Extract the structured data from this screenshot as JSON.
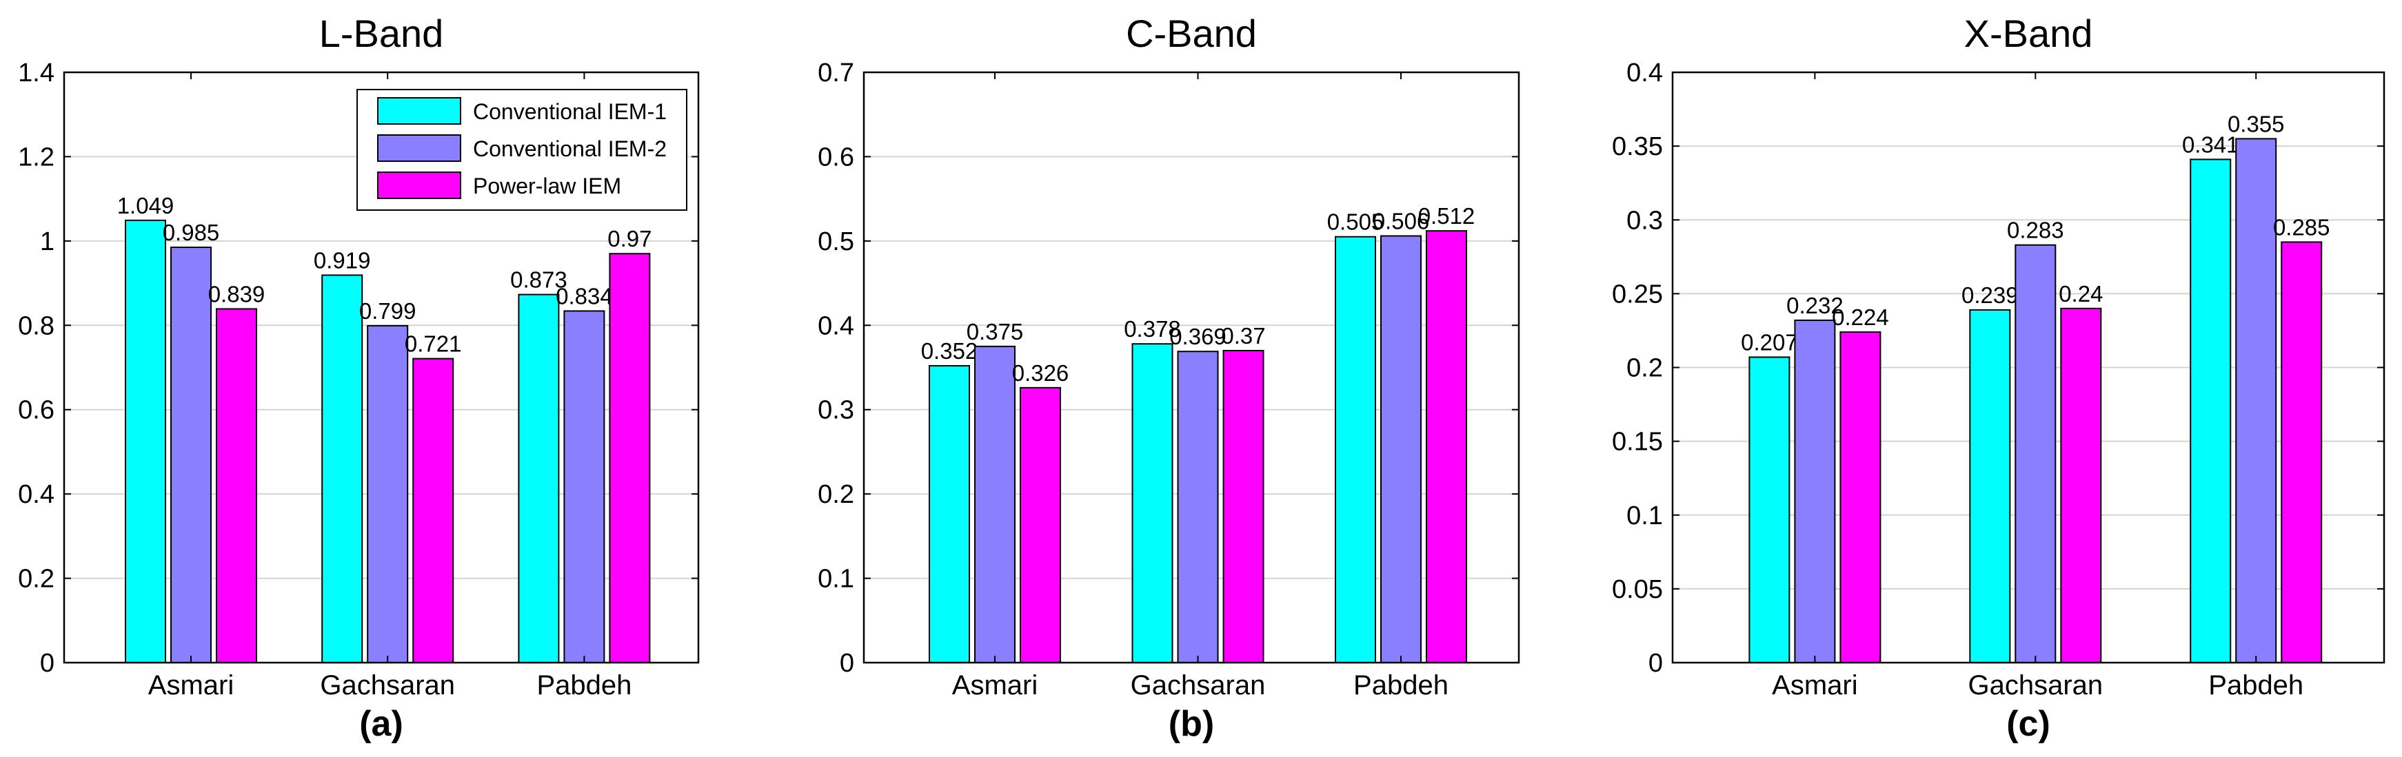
{
  "chart_data": [
    {
      "type": "bar",
      "title": "L-Band",
      "sublabel": "(a)",
      "categories": [
        "Asmari",
        "Gachsaran",
        "Pabdeh"
      ],
      "ylim": [
        0,
        1.4
      ],
      "yticks": [
        "0",
        "0.2",
        "0.4",
        "0.6",
        "0.8",
        "1",
        "1.2",
        "1.4"
      ],
      "grid": true,
      "legend": "top-right",
      "series": [
        {
          "name": "Conventional IEM-1",
          "color": "#00ffff",
          "values": [
            1.049,
            0.919,
            0.873
          ],
          "labels": [
            "1.049",
            "0.919",
            "0.873"
          ]
        },
        {
          "name": "Conventional IEM-2",
          "color": "#8a7fff",
          "values": [
            0.985,
            0.799,
            0.834
          ],
          "labels": [
            "0.985",
            "0.799",
            "0.834"
          ]
        },
        {
          "name": "Power-law IEM",
          "color": "#ff00ff",
          "values": [
            0.839,
            0.721,
            0.97
          ],
          "labels": [
            "0.839",
            "0.721",
            "0.97"
          ]
        }
      ]
    },
    {
      "type": "bar",
      "title": "C-Band",
      "sublabel": "(b)",
      "categories": [
        "Asmari",
        "Gachsaran",
        "Pabdeh"
      ],
      "ylim": [
        0,
        0.7
      ],
      "yticks": [
        "0",
        "0.1",
        "0.2",
        "0.3",
        "0.4",
        "0.5",
        "0.6",
        "0.7"
      ],
      "grid": true,
      "series": [
        {
          "name": "Conventional IEM-1",
          "color": "#00ffff",
          "values": [
            0.352,
            0.378,
            0.505
          ],
          "labels": [
            "0.352",
            "0.378",
            "0.505"
          ]
        },
        {
          "name": "Conventional IEM-2",
          "color": "#8a7fff",
          "values": [
            0.375,
            0.369,
            0.506
          ],
          "labels": [
            "0.375",
            "0.369",
            "0.506"
          ]
        },
        {
          "name": "Power-law IEM",
          "color": "#ff00ff",
          "values": [
            0.326,
            0.37,
            0.512
          ],
          "labels": [
            "0.326",
            "0.37",
            "0.512"
          ]
        }
      ]
    },
    {
      "type": "bar",
      "title": "X-Band",
      "sublabel": "(c)",
      "categories": [
        "Asmari",
        "Gachsaran",
        "Pabdeh"
      ],
      "ylim": [
        0,
        0.4
      ],
      "yticks": [
        "0",
        "0.05",
        "0.1",
        "0.15",
        "0.2",
        "0.25",
        "0.3",
        "0.35",
        "0.4"
      ],
      "grid": true,
      "series": [
        {
          "name": "Conventional IEM-1",
          "color": "#00ffff",
          "values": [
            0.207,
            0.239,
            0.341
          ],
          "labels": [
            "0.207",
            "0.239",
            "0.341"
          ]
        },
        {
          "name": "Conventional IEM-2",
          "color": "#8a7fff",
          "values": [
            0.232,
            0.283,
            0.355
          ],
          "labels": [
            "0.232",
            "0.283",
            "0.355"
          ]
        },
        {
          "name": "Power-law IEM",
          "color": "#ff00ff",
          "values": [
            0.224,
            0.24,
            0.285
          ],
          "labels": [
            "0.224",
            "0.24",
            "0.285"
          ]
        }
      ]
    }
  ]
}
